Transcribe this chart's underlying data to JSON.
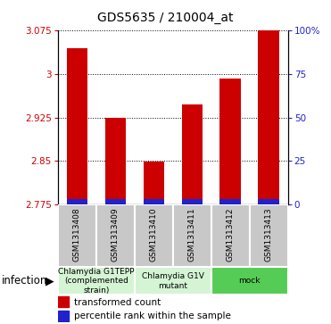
{
  "title": "GDS5635 / 210004_at",
  "samples": [
    "GSM1313408",
    "GSM1313409",
    "GSM1313410",
    "GSM1313411",
    "GSM1313412",
    "GSM1313413"
  ],
  "red_values": [
    3.045,
    2.925,
    2.848,
    2.948,
    2.993,
    3.075
  ],
  "blue_pct": [
    2,
    2,
    2,
    2,
    2,
    2
  ],
  "ylim_left": [
    2.775,
    3.075
  ],
  "yticks_left": [
    2.775,
    2.85,
    2.925,
    3.0,
    3.075
  ],
  "ytick_labels_left": [
    "2.775",
    "2.85",
    "2.925",
    "3",
    "3.075"
  ],
  "yticks_right_pct": [
    0,
    25,
    50,
    75,
    100
  ],
  "ytick_labels_right": [
    "0",
    "25",
    "50",
    "75",
    "100%"
  ],
  "ylim_right": [
    0,
    100
  ],
  "bar_width": 0.55,
  "red_color": "#cc0000",
  "blue_color": "#2222cc",
  "group_labels": [
    "Chlamydia G1TEPP\n(complemented\nstrain)",
    "Chlamydia G1V\nmutant",
    "mock"
  ],
  "group_starts": [
    0,
    2,
    4
  ],
  "group_ends": [
    2,
    4,
    6
  ],
  "group_colors": [
    "#d4f4d4",
    "#d4f4d4",
    "#55cc55"
  ],
  "sample_box_color": "#c8c8c8",
  "legend_red": "transformed count",
  "legend_blue": "percentile rank within the sample",
  "infection_label": "infection",
  "left_axis_color": "#cc0000",
  "right_axis_color": "#2222cc",
  "title_fontsize": 10,
  "tick_fontsize": 7.5,
  "sample_fontsize": 6.5,
  "group_fontsize": 6.5,
  "legend_fontsize": 7.5
}
